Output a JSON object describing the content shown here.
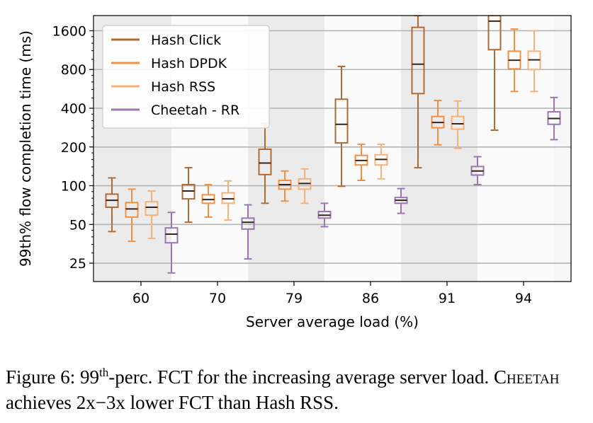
{
  "chart_data": {
    "type": "box",
    "xlabel": "Server average load (%)",
    "ylabel": "99th% flow completion time (ms)",
    "yscale": "log2",
    "ylim": [
      18,
      2100
    ],
    "yticks": [
      {
        "value": 25,
        "label": "25"
      },
      {
        "value": 50,
        "label": "50"
      },
      {
        "value": 100,
        "label": "100"
      },
      {
        "value": 200,
        "label": "200"
      },
      {
        "value": 400,
        "label": "400"
      },
      {
        "value": 800,
        "label": "800"
      },
      {
        "value": 1600,
        "label": "1600"
      }
    ],
    "categories": [
      "60",
      "70",
      "79",
      "86",
      "91",
      "94"
    ],
    "legend": {
      "position": "top-left"
    },
    "series": [
      {
        "name": "Hash Click",
        "color": "#b06a34",
        "boxes": [
          {
            "whislo": 44,
            "q1": 68,
            "med": 77,
            "q3": 86,
            "whishi": 115
          },
          {
            "whislo": 52,
            "q1": 79,
            "med": 91,
            "q3": 102,
            "whishi": 138
          },
          {
            "whislo": 73,
            "q1": 122,
            "med": 150,
            "q3": 192,
            "whishi": 305
          },
          {
            "whislo": 99,
            "q1": 215,
            "med": 300,
            "q3": 470,
            "whishi": 845
          },
          {
            "whislo": 138,
            "q1": 520,
            "med": 880,
            "q3": 1700,
            "whishi": 2100
          },
          {
            "whislo": 270,
            "q1": 1140,
            "med": 1900,
            "q3": 2100,
            "whishi": 2100
          }
        ]
      },
      {
        "name": "Hash DPDK",
        "color": "#f39143",
        "boxes": [
          {
            "whislo": 37,
            "q1": 57,
            "med": 66,
            "q3": 74,
            "whishi": 94
          },
          {
            "whislo": 57,
            "q1": 73,
            "med": 78,
            "q3": 85,
            "whishi": 102
          },
          {
            "whislo": 76,
            "q1": 94,
            "med": 102,
            "q3": 110,
            "whishi": 130
          },
          {
            "whislo": 110,
            "q1": 145,
            "med": 157,
            "q3": 172,
            "whishi": 210
          },
          {
            "whislo": 208,
            "q1": 282,
            "med": 310,
            "q3": 345,
            "whishi": 460
          },
          {
            "whislo": 540,
            "q1": 810,
            "med": 945,
            "q3": 1110,
            "whishi": 1650
          }
        ]
      },
      {
        "name": "Hash RSS",
        "color": "#f7b27a",
        "boxes": [
          {
            "whislo": 39,
            "q1": 59,
            "med": 68,
            "q3": 75,
            "whishi": 91
          },
          {
            "whislo": 54,
            "q1": 73,
            "med": 79,
            "q3": 88,
            "whishi": 109
          },
          {
            "whislo": 73,
            "q1": 94,
            "med": 104,
            "q3": 113,
            "whishi": 135
          },
          {
            "whislo": 113,
            "q1": 145,
            "med": 160,
            "q3": 174,
            "whishi": 210
          },
          {
            "whislo": 195,
            "q1": 275,
            "med": 303,
            "q3": 345,
            "whishi": 455
          },
          {
            "whislo": 540,
            "q1": 800,
            "med": 950,
            "q3": 1110,
            "whishi": 1600
          }
        ]
      },
      {
        "name": "Cheetah - RR",
        "color": "#9a77b3",
        "boxes": [
          {
            "whislo": 21,
            "q1": 36,
            "med": 42,
            "q3": 47,
            "whishi": 62
          },
          {
            "whislo": 27,
            "q1": 46,
            "med": 52,
            "q3": 56,
            "whishi": 71
          },
          {
            "whislo": 48,
            "q1": 56,
            "med": 59,
            "q3": 63,
            "whishi": 73
          },
          {
            "whislo": 61,
            "q1": 73,
            "med": 77,
            "q3": 81,
            "whishi": 95
          },
          {
            "whislo": 102,
            "q1": 121,
            "med": 130,
            "q3": 141,
            "whishi": 168
          },
          {
            "whislo": 228,
            "q1": 300,
            "med": 333,
            "q3": 375,
            "whishi": 485
          }
        ]
      }
    ]
  },
  "caption": {
    "prefix": "Figure 6: 99",
    "superscript": "th",
    "middle": "-perc. FCT for the increasing average server load. ",
    "smallcaps": "Cheetah",
    "suffix": " achieves 2x−3x lower FCT than Hash RSS."
  }
}
